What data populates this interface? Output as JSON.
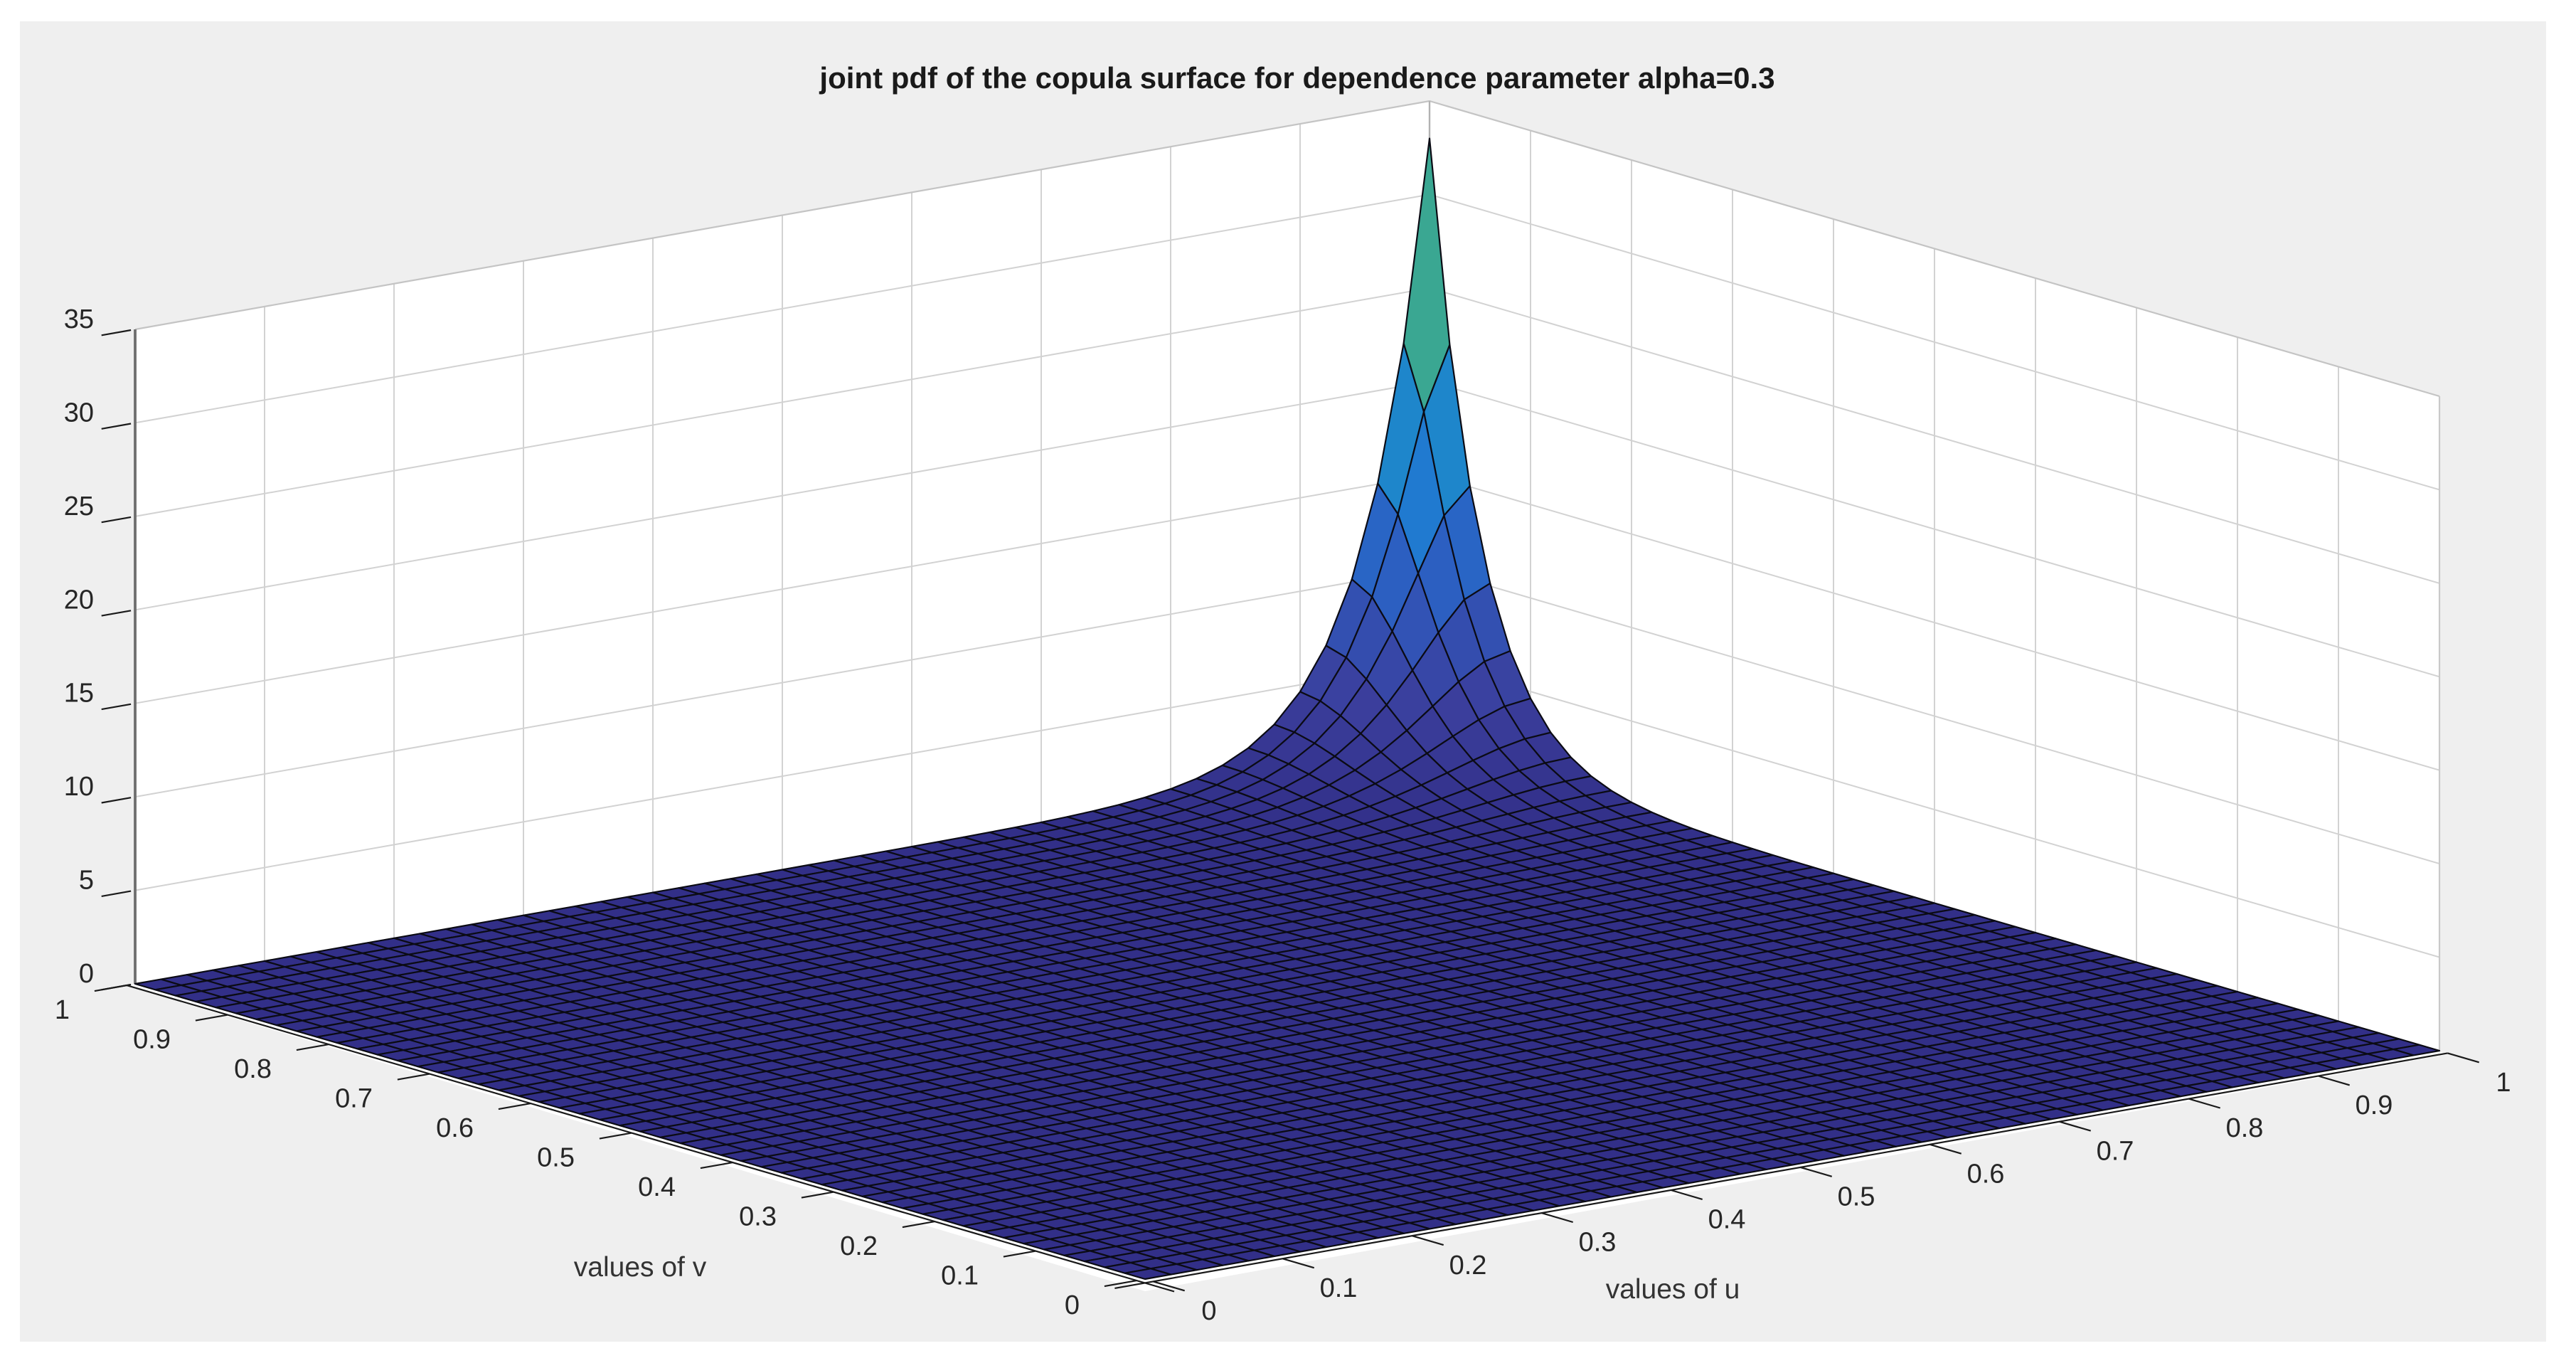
{
  "window": {
    "background": "#ffffff",
    "canvas_background": "#efefef"
  },
  "chart_data": {
    "type": "surface",
    "title": "joint pdf of the copula surface for dependence parameter alpha=0.3",
    "xlabel": "values of u",
    "ylabel": "values of v",
    "xlim": [
      0,
      1
    ],
    "ylim": [
      0,
      1
    ],
    "zlim": [
      0,
      35
    ],
    "x_ticks": [
      "0",
      "0.1",
      "0.2",
      "0.3",
      "0.4",
      "0.5",
      "0.6",
      "0.7",
      "0.8",
      "0.9",
      "1"
    ],
    "y_ticks": [
      "0",
      "0.1",
      "0.2",
      "0.3",
      "0.4",
      "0.5",
      "0.6",
      "0.7",
      "0.8",
      "0.9",
      "1"
    ],
    "z_ticks": [
      "0",
      "5",
      "10",
      "15",
      "20",
      "25",
      "30",
      "35"
    ],
    "grid": true,
    "legend": "none",
    "mesh_n": 50,
    "surface": {
      "description": "joint copula density over the unit square: flat near z=0 almost everywhere with a sharp narrow spike at the back corner (u,v)=(1,1)",
      "peak": {
        "u": 1,
        "v": 1,
        "z": 33
      },
      "decay_constant": 0.036,
      "formula": "z(u,v) = 33*exp(-sqrt(((1-u)^2+(1-v)^2)/2)/0.036)"
    },
    "colormap": [
      {
        "t": 0.0,
        "color": "#322f88"
      },
      {
        "t": 0.18,
        "color": "#3b3f9d"
      },
      {
        "t": 0.4,
        "color": "#2d5cc0"
      },
      {
        "t": 0.6,
        "color": "#1e7ed2"
      },
      {
        "t": 0.8,
        "color": "#1f93c0"
      },
      {
        "t": 1.0,
        "color": "#3aa792"
      }
    ],
    "mesh_line_color": "#0b0b14",
    "wall_color": "#ffffff",
    "grid_color": "#d2d2d2",
    "axis_ruler_color": "#1a1a1a",
    "tick_label_color": "#262626",
    "title_color": "#1a1a1a"
  }
}
